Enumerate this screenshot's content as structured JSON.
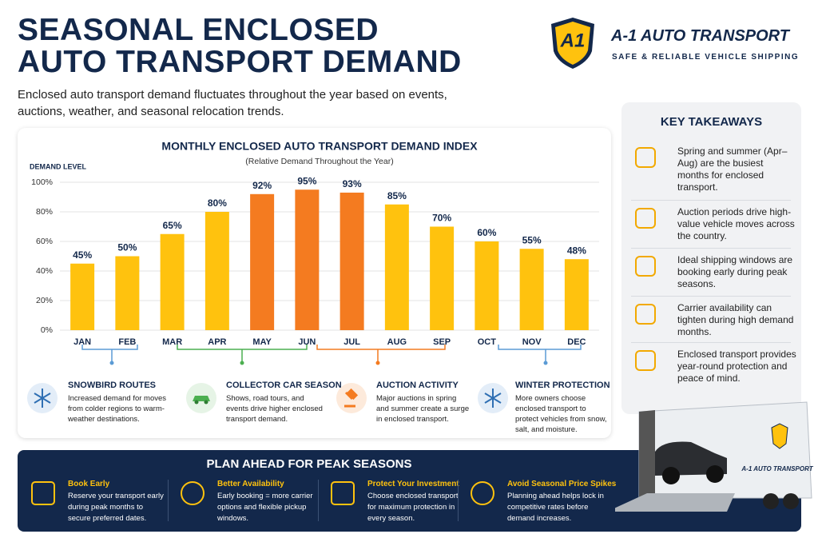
{
  "header": {
    "title_line1": "SEASONAL ENCLOSED",
    "title_line2": "AUTO TRANSPORT DEMAND",
    "description": "Enclosed auto transport demand fluctuates throughout the year based on events, auctions, weather, and seasonal relocation trends."
  },
  "brand": {
    "logo": "A1",
    "name": "A-1 AUTO TRANSPORT",
    "tagline": "SAFE & RELIABLE VEHICLE SHIPPING"
  },
  "chart_data": {
    "type": "bar",
    "title": "MONTHLY ENCLOSED AUTO TRANSPORT DEMAND INDEX",
    "subtitle": "(Relative Demand Throughout the Year)",
    "y_label": "DEMAND LEVEL",
    "categories": [
      "JAN",
      "FEB",
      "MAR",
      "APR",
      "MAY",
      "JUN",
      "JUL",
      "AUG",
      "SEP",
      "OCT",
      "NOV",
      "DEC"
    ],
    "values": [
      45,
      50,
      65,
      80,
      92,
      95,
      93,
      85,
      70,
      60,
      55,
      48
    ],
    "value_labels": [
      "45%",
      "50%",
      "65%",
      "80%",
      "92%",
      "95%",
      "93%",
      "85%",
      "70%",
      "60%",
      "55%",
      "48%"
    ],
    "colors": [
      "#ffc20e",
      "#ffc20e",
      "#ffc20e",
      "#ffc20e",
      "#f47b20",
      "#f47b20",
      "#f47b20",
      "#ffc20e",
      "#ffc20e",
      "#ffc20e",
      "#ffc20e",
      "#ffc20e"
    ],
    "ylim": [
      0,
      100
    ],
    "yticks": [
      {
        "value": 0,
        "label": "0%"
      },
      {
        "value": 20,
        "label": "20%"
      },
      {
        "value": 40,
        "label": "40%"
      },
      {
        "value": 60,
        "label": "60%"
      },
      {
        "value": 80,
        "label": "80%"
      },
      {
        "value": 100,
        "label": "100%"
      }
    ],
    "grid": true
  },
  "seasons": [
    {
      "title": "SNOWBIRD ROUTES",
      "text": "Increased demand for moves from colder regions to warm-weather destinations."
    },
    {
      "title": "COLLECTOR CAR SEASON",
      "text": "Shows, road tours, and events drive higher enclosed transport demand."
    },
    {
      "title": "AUCTION ACTIVITY",
      "text": "Major auctions in spring and summer create a surge in enclosed transport."
    },
    {
      "title": "WINTER PROTECTION",
      "text": "More owners choose enclosed transport to protect vehicles from snow, salt, and moisture."
    }
  ],
  "takeaways": {
    "title": "KEY TAKEAWAYS",
    "items": [
      "Spring and summer (Apr–Aug) are the busiest months for enclosed transport.",
      "Auction periods drive high-value vehicle moves across the country.",
      "Ideal shipping windows are booking early during peak seasons.",
      "Carrier availability can tighten during high demand months.",
      "Enclosed transport provides year-round protection and peace of mind."
    ]
  },
  "plan": {
    "title": "PLAN AHEAD FOR PEAK SEASONS",
    "items": [
      {
        "title": "Book Early",
        "text": "Reserve your transport early during peak months to secure preferred dates."
      },
      {
        "title": "Better Availability",
        "text": "Early booking = more carrier options and flexible pickup windows."
      },
      {
        "title": "Protect Your Investment",
        "text": "Choose enclosed transport for maximum protection in every season."
      },
      {
        "title": "Avoid Seasonal Price Spikes",
        "text": "Planning ahead helps lock in competitive rates before demand increases."
      }
    ]
  },
  "truck_label": "A-1 AUTO TRANSPORT"
}
